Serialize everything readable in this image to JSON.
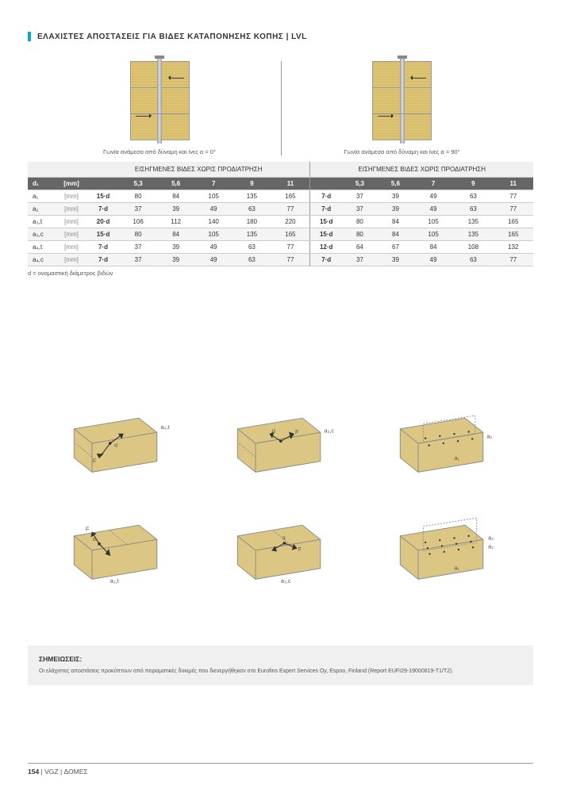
{
  "title": "ΕΛΑΧΙΣΤΕΣ ΑΠΟΣΤΑΣΕΙΣ ΓΙΑ ΒΙΔΕΣ ΚΑΤΑΠΟΝΗΣΗΣ ΚΟΠΗΣ | LVL",
  "captions": {
    "left": "Γωνία ανάμεσα από δύναμη και ίνες α = 0°",
    "right": "Γωνία ανάμεσα από δύναμη και ίνες α = 90°"
  },
  "table": {
    "group_header": "ΕΙΣΗΓΜΕΝΕΣ ΒΙΔΕΣ ΧΩΡΙΣ ΠΡΟΔΙΑΤΡΗΣΗ",
    "d_label": "d₁",
    "d_unit": "[mm]",
    "diameters": [
      "5,3",
      "5,6",
      "7",
      "9",
      "11"
    ],
    "rows": [
      {
        "label": "a₁",
        "unit": "[mm]",
        "fA": "15·d",
        "A": [
          "80",
          "84",
          "105",
          "135",
          "165"
        ],
        "fB": "7·d",
        "B": [
          "37",
          "39",
          "49",
          "63",
          "77"
        ]
      },
      {
        "label": "a₂",
        "unit": "[mm]",
        "fA": "7·d",
        "A": [
          "37",
          "39",
          "49",
          "63",
          "77"
        ],
        "fB": "7·d",
        "B": [
          "37",
          "39",
          "49",
          "63",
          "77"
        ]
      },
      {
        "label": "a₃,t",
        "unit": "[mm]",
        "fA": "20·d",
        "A": [
          "106",
          "112",
          "140",
          "180",
          "220"
        ],
        "fB": "15·d",
        "B": [
          "80",
          "84",
          "105",
          "135",
          "165"
        ]
      },
      {
        "label": "a₃,c",
        "unit": "[mm]",
        "fA": "15·d",
        "A": [
          "80",
          "84",
          "105",
          "135",
          "165"
        ],
        "fB": "15·d",
        "B": [
          "80",
          "84",
          "105",
          "135",
          "165"
        ]
      },
      {
        "label": "a₄,t",
        "unit": "[mm]",
        "fA": "7·d",
        "A": [
          "37",
          "39",
          "49",
          "63",
          "77"
        ],
        "fB": "12·d",
        "B": [
          "64",
          "67",
          "84",
          "108",
          "132"
        ]
      },
      {
        "label": "a₄,c",
        "unit": "[mm]",
        "fA": "7·d",
        "A": [
          "37",
          "39",
          "49",
          "63",
          "77"
        ],
        "fB": "7·d",
        "B": [
          "37",
          "39",
          "49",
          "63",
          "77"
        ]
      }
    ],
    "footnote": "d = ονομαστική διάμετρος βιδών"
  },
  "iso_labels": {
    "r0c0": "a₄,t",
    "r0c0_b": "F",
    "r0c0_a": "α",
    "r0c1_b": "F",
    "r0c1_a": "α",
    "r0c1": "a₄,c",
    "r0c2_r": "a₂",
    "r0c2_b": "a₁",
    "r1c0": "F",
    "r1c0_a": "α",
    "r1c0_b": "a₃,t",
    "r1c1_b": "F",
    "r1c1_a": "α",
    "r1c1": "a₃,c",
    "r1c2_r1": "a₂",
    "r1c2_r2": "a₂",
    "r1c2_b": "a₁"
  },
  "notes": {
    "heading": "ΣΗΜΕΙΩΣΕΙΣ:",
    "body": "Οι ελάχιστες αποστάσεις προκύπτουν από πειραματικές δοκιμές που διενεργήθηκαν στο Eurofins Expert Services Oy, Espoo, Finland (Report EUFI29-19000819-T1/T2)."
  },
  "footer": {
    "page": "154",
    "sep": " | ",
    "brand": "VGZ",
    "section": "ΔΟΜΕΣ"
  },
  "colors": {
    "accent": "#00a8e0",
    "wood": "#d9c27a",
    "header_dark": "#666666"
  }
}
